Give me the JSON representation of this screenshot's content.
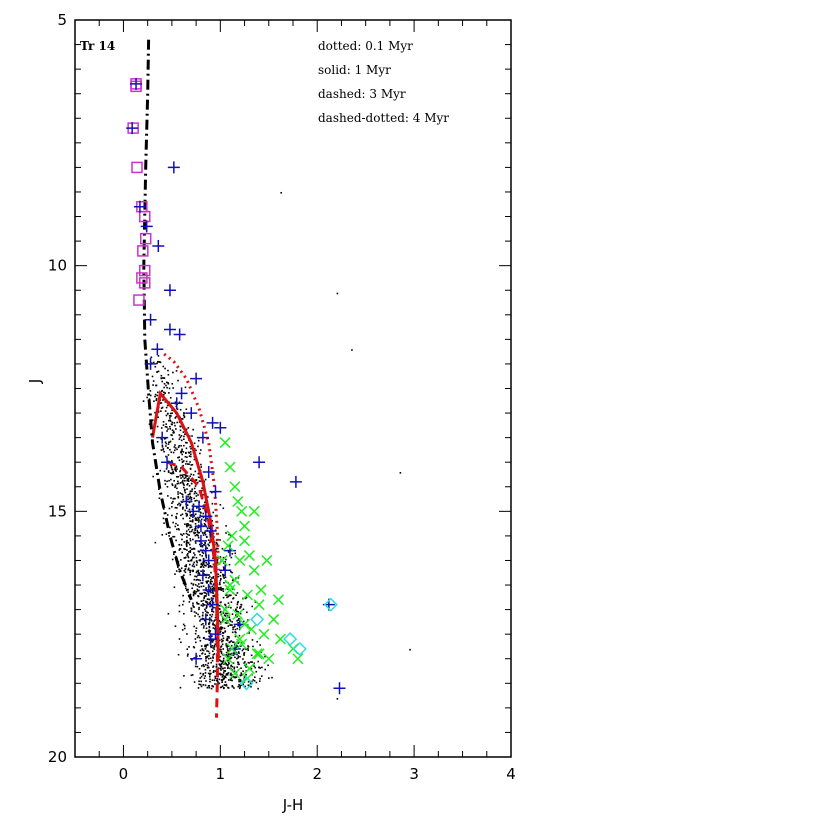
{
  "chart_data": {
    "type": "scatter",
    "title": "",
    "xlabel": "J-H",
    "ylabel": "J",
    "xlim": [
      -0.5,
      4
    ],
    "ylim": [
      20,
      5
    ],
    "y_inverted": true,
    "grid": false,
    "panel_label": "Tr 14",
    "legend_position": "top-right",
    "legend_entries": [
      "dotted: 0.1 Myr",
      "solid: 1 Myr",
      "dashed: 3 Myr",
      "dashed-dotted: 4 Myr"
    ],
    "x_ticks": [
      0,
      1,
      2,
      3,
      4
    ],
    "y_ticks": [
      5,
      10,
      15,
      20
    ],
    "isochrones": [
      {
        "style": "dotted",
        "age": "0.1 Myr",
        "color": "#dd1111",
        "x": [
          0.42,
          0.52,
          0.65,
          0.78,
          0.88,
          0.94,
          0.97,
          0.98
        ],
        "y": [
          11.8,
          11.95,
          12.3,
          12.9,
          13.6,
          14.5,
          15.4,
          16.2
        ]
      },
      {
        "style": "solid",
        "age": "1 Myr",
        "color": "#dd1111",
        "x": [
          0.3,
          0.38,
          0.55,
          0.7,
          0.82,
          0.9,
          0.95,
          0.97,
          0.98
        ],
        "y": [
          13.5,
          12.6,
          13.0,
          13.6,
          14.4,
          15.2,
          16.0,
          17.0,
          18.0
        ]
      },
      {
        "style": "dashed",
        "age": "3 Myr",
        "color": "#dd1111",
        "x": [
          0.45,
          0.6,
          0.78,
          0.88,
          0.94,
          0.96,
          0.97,
          0.97,
          0.96
        ],
        "y": [
          14.0,
          14.1,
          14.5,
          15.2,
          16.0,
          16.8,
          17.6,
          18.4,
          19.2
        ]
      },
      {
        "style": "dash-dot",
        "age": "4 Myr",
        "color": "#000000",
        "x": [
          0.26,
          0.25,
          0.23,
          0.21,
          0.22,
          0.26,
          0.3,
          0.38,
          0.48,
          0.58,
          0.7
        ],
        "y": [
          5.4,
          6.5,
          8.0,
          10.0,
          11.5,
          12.6,
          13.6,
          14.6,
          15.5,
          16.2,
          16.8
        ]
      }
    ],
    "series": [
      {
        "marker": "open-square",
        "color": "#cc33cc",
        "x": [
          0.13,
          0.13,
          0.1,
          0.14,
          0.19,
          0.22,
          0.23,
          0.2,
          0.22,
          0.19,
          0.22,
          0.16
        ],
        "y": [
          6.3,
          6.35,
          7.2,
          8.0,
          8.8,
          9.0,
          9.45,
          9.7,
          10.1,
          10.25,
          10.35,
          10.7
        ]
      },
      {
        "marker": "plus",
        "color": "#1111bb",
        "x": [
          0.13,
          0.09,
          0.52,
          0.17,
          0.24,
          0.36,
          0.48,
          0.28,
          0.48,
          0.58,
          0.35,
          0.28,
          0.55,
          0.75,
          0.6,
          0.7,
          0.92,
          0.82,
          1.0,
          0.4,
          0.45,
          0.88,
          0.95,
          0.65,
          0.78,
          0.85,
          0.9,
          0.8,
          0.85,
          0.88,
          1.05,
          0.82,
          0.88,
          0.92,
          0.85,
          1.15,
          1.4,
          1.78,
          0.75,
          0.9,
          2.23,
          2.12,
          0.72,
          0.8,
          1.1,
          0.95,
          1.2
        ],
        "y": [
          6.3,
          7.2,
          8.0,
          8.8,
          9.2,
          9.6,
          10.5,
          11.1,
          11.3,
          11.4,
          11.7,
          12.0,
          12.8,
          12.3,
          12.6,
          13.0,
          13.2,
          13.5,
          13.3,
          13.5,
          14.0,
          14.2,
          14.6,
          14.8,
          14.9,
          15.1,
          15.4,
          15.6,
          15.8,
          16.0,
          16.2,
          16.3,
          16.6,
          16.9,
          17.2,
          17.8,
          14.0,
          14.4,
          18.0,
          17.6,
          18.6,
          16.9,
          15.0,
          15.3,
          15.8,
          17.5,
          17.3
        ]
      },
      {
        "marker": "cross",
        "color": "#22ee22",
        "x": [
          1.05,
          1.1,
          1.15,
          1.18,
          1.22,
          1.25,
          1.12,
          1.08,
          1.3,
          1.2,
          1.35,
          1.15,
          1.1,
          1.28,
          1.4,
          1.05,
          1.18,
          1.25,
          1.32,
          1.45,
          1.22,
          1.12,
          1.38,
          1.5,
          1.62,
          1.75,
          1.8,
          1.55,
          1.3,
          1.42,
          1.25,
          1.35,
          1.48,
          1.6,
          1.1,
          1.2,
          1.05,
          1.15,
          1.28,
          1.02,
          1.08,
          1.4
        ],
        "y": [
          13.6,
          14.1,
          14.5,
          14.8,
          15.0,
          15.3,
          15.5,
          15.7,
          15.9,
          16.0,
          16.2,
          16.4,
          16.5,
          16.7,
          16.9,
          17.0,
          17.1,
          17.3,
          17.4,
          17.5,
          17.7,
          17.8,
          17.9,
          18.0,
          17.6,
          17.8,
          18.0,
          17.2,
          18.2,
          16.6,
          15.6,
          15.0,
          16.0,
          16.8,
          16.6,
          17.6,
          17.2,
          18.3,
          18.4,
          16.0,
          18.0,
          17.9
        ]
      },
      {
        "marker": "open-diamond",
        "color": "#33dddd",
        "x": [
          1.27,
          1.38,
          1.72,
          1.82,
          2.14
        ],
        "y": [
          18.5,
          17.2,
          17.6,
          17.8,
          16.9
        ]
      },
      {
        "marker": "dot",
        "color": "#000000",
        "x": [],
        "y": []
      }
    ]
  }
}
